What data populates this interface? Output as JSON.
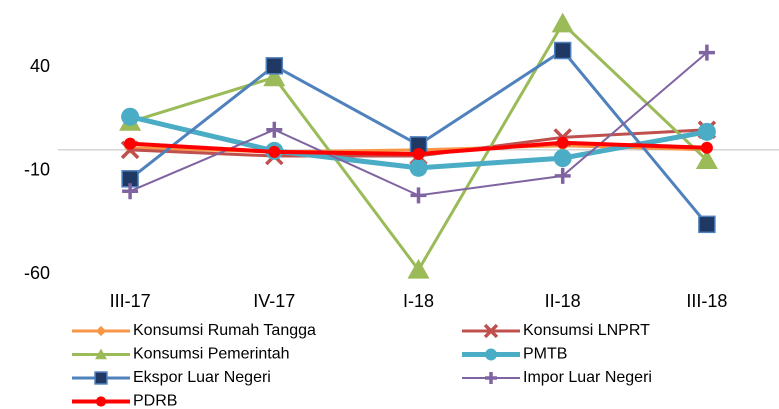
{
  "chart_data": {
    "type": "line",
    "categories": [
      "III-17",
      "IV-17",
      "I-18",
      "II-18",
      "III-18"
    ],
    "ylim": [
      -60,
      70
    ],
    "yticks": [
      -60,
      -10,
      40
    ],
    "series": [
      {
        "name": "Konsumsi Rumah Tangga",
        "color": "#f79646",
        "marker": "diamond",
        "values": [
          1,
          -1,
          0,
          2,
          0
        ]
      },
      {
        "name": "Konsumsi LNPRT",
        "color": "#c0504d",
        "marker": "x",
        "values": [
          0,
          -3,
          -3,
          6,
          9.7
        ]
      },
      {
        "name": "Konsumsi Pemerintah",
        "color": "#9bbb59",
        "marker": "triangle",
        "values": [
          13.5,
          35,
          -58,
          61,
          -5
        ]
      },
      {
        "name": "PMTB",
        "color": "#4bacc6",
        "marker": "circle",
        "values": [
          16,
          -0.5,
          -8.7,
          -4,
          8.7
        ]
      },
      {
        "name": "Ekspor Luar Negeri",
        "color": "#4f81bd",
        "marker": "square",
        "values": [
          -14,
          40.6,
          2.4,
          48,
          -36
        ]
      },
      {
        "name": "Impor Luar Negeri",
        "color": "#8064a2",
        "marker": "plus",
        "values": [
          -20,
          9.7,
          -22,
          -12.6,
          47
        ]
      },
      {
        "name": "PDRB",
        "color": "#ff0000",
        "marker": "circle",
        "values": [
          3,
          -1,
          -2,
          3.4,
          1
        ]
      }
    ]
  }
}
